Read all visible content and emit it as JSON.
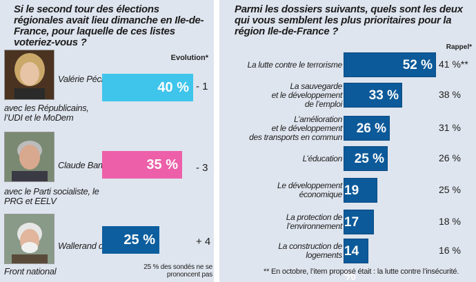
{
  "left": {
    "question": "Si le second tour des élections régionales avait lieu dimanche en Ile-de-France, pour laquelle de ces listes voteriez-vous ?",
    "evolution_label": "Evolution*",
    "footnote": "25 % des sondés ne se prononcent pas"
  },
  "right": {
    "question": "Parmi les dossiers suivants, quels sont les deux qui vous semblent les plus prioritaires pour la région Ile-de-France ?",
    "rappel_label": "Rappel*",
    "footnote": "** En octobre, l’item proposé était : la lutte contre l’insécurité."
  },
  "chart_data": [
    {
      "type": "bar",
      "orientation": "horizontal",
      "categories": [
        "Valérie Pécresse",
        "Claude Bartolone",
        "Wallerand de Saint-Just"
      ],
      "lists": [
        "avec les Républicains, l’UDI et le MoDem",
        "avec le Parti socialiste, le PRG et EELV",
        "Front national"
      ],
      "values": [
        40,
        35,
        25
      ],
      "value_labels": [
        "40 %",
        "35 %",
        "25 %"
      ],
      "evolution": [
        "- 1",
        "- 3",
        "+ 4"
      ],
      "colors": [
        "#3fc4ec",
        "#ee5fa9",
        "#0d5e9e"
      ],
      "xlim": [
        0,
        40
      ]
    },
    {
      "type": "bar",
      "orientation": "horizontal",
      "categories": [
        "La lutte contre le terrorisme",
        "La sauvegarde\net le développement\nde l’emploi",
        "L’amélioration\net le développement\ndes transports en commun",
        "L’éducation",
        "Le développement\néconomique",
        "La protection de\nl’environnement",
        "La construction de\nlogements"
      ],
      "values": [
        52,
        33,
        26,
        25,
        19,
        17,
        14
      ],
      "value_labels": [
        "52 %",
        "33 %",
        "26 %",
        "25 %",
        "19 %",
        "17 %",
        "14 %"
      ],
      "rappel": [
        "41 %**",
        "38 %",
        "31 %",
        "26 %",
        "25 %",
        "18 %",
        "16 %"
      ],
      "color": "#0c5a99",
      "xlim": [
        0,
        52
      ]
    }
  ]
}
